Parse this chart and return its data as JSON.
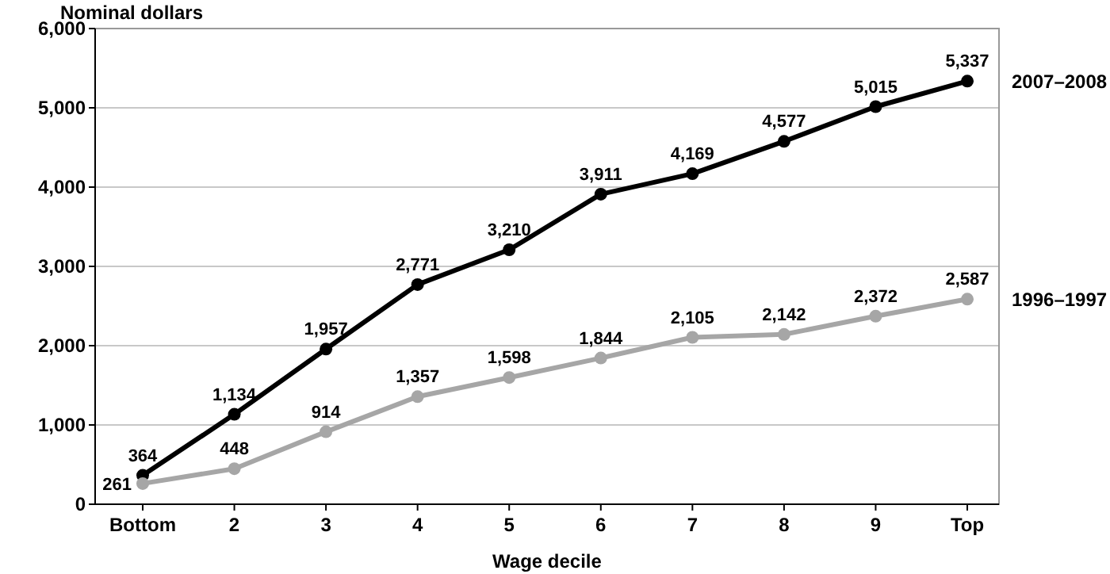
{
  "chart_data": {
    "type": "line",
    "ylabel": "Nominal dollars",
    "xlabel": "Wage decile",
    "categories": [
      "Bottom",
      "2",
      "3",
      "4",
      "5",
      "6",
      "7",
      "8",
      "9",
      "Top"
    ],
    "series": [
      {
        "name": "2007–2008",
        "color": "#000000",
        "values": [
          364,
          1134,
          1957,
          2771,
          3210,
          3911,
          4169,
          4577,
          5015,
          5337
        ],
        "value_labels": [
          "364",
          "1,134",
          "1,957",
          "2,771",
          "3,210",
          "3,911",
          "4,169",
          "4,577",
          "5,015",
          "5,337"
        ]
      },
      {
        "name": "1996–1997",
        "color": "#a6a6a6",
        "values": [
          261,
          448,
          914,
          1357,
          1598,
          1844,
          2105,
          2142,
          2372,
          2587
        ],
        "value_labels": [
          "261",
          "448",
          "914",
          "1,357",
          "1,598",
          "1,844",
          "2,105",
          "2,142",
          "2,372",
          "2,587"
        ]
      }
    ],
    "ylim": [
      0,
      6000
    ],
    "yticks": [
      {
        "value": 0,
        "label": "0"
      },
      {
        "value": 1000,
        "label": "1,000"
      },
      {
        "value": 2000,
        "label": "2,000"
      },
      {
        "value": 3000,
        "label": "3,000"
      },
      {
        "value": 4000,
        "label": "4,000"
      },
      {
        "value": 5000,
        "label": "5,000"
      },
      {
        "value": 6000,
        "label": "6,000"
      }
    ],
    "grid": "y",
    "marker": "circle",
    "line_style": "solid"
  }
}
